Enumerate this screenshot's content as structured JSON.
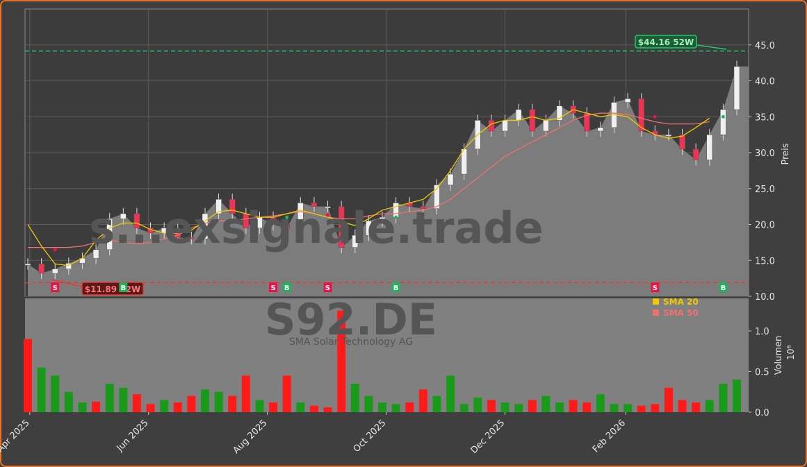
{
  "chart_data": [
    {
      "type": "candlestick",
      "title": "",
      "xlabel": "",
      "ylabel": "Preis",
      "ylim": [
        10,
        50
      ],
      "yticks": [
        10.0,
        15.0,
        20.0,
        25.0,
        30.0,
        35.0,
        40.0,
        45.0
      ],
      "xticks": [
        "Apr 2025",
        "Jun 2025",
        "Aug 2025",
        "Oct 2025",
        "Dec 2025",
        "Feb 2026"
      ],
      "x": [
        "2025-03-31",
        "2025-04-07",
        "2025-04-14",
        "2025-04-21",
        "2025-04-28",
        "2025-05-05",
        "2025-05-12",
        "2025-05-19",
        "2025-05-26",
        "2025-06-02",
        "2025-06-09",
        "2025-06-16",
        "2025-06-23",
        "2025-06-30",
        "2025-07-07",
        "2025-07-14",
        "2025-07-21",
        "2025-07-28",
        "2025-08-04",
        "2025-08-11",
        "2025-08-18",
        "2025-08-25",
        "2025-09-01",
        "2025-09-08",
        "2025-09-15",
        "2025-09-22",
        "2025-09-29",
        "2025-10-06",
        "2025-10-13",
        "2025-10-20",
        "2025-10-27",
        "2025-11-03",
        "2025-11-10",
        "2025-11-17",
        "2025-11-24",
        "2025-12-01",
        "2025-12-08",
        "2025-12-15",
        "2025-12-22",
        "2025-12-29",
        "2026-01-05",
        "2026-01-12",
        "2026-01-19",
        "2026-01-26",
        "2026-02-02",
        "2026-02-09",
        "2026-02-16",
        "2026-02-23",
        "2026-03-02",
        "2026-03-09",
        "2026-03-16",
        "2026-03-23",
        "2026-03-30"
      ],
      "close": [
        14.5,
        13.2,
        13.8,
        14.6,
        15.3,
        16.5,
        20.8,
        21.5,
        19.5,
        18.8,
        19.5,
        18.2,
        18.0,
        21.5,
        23.5,
        21.5,
        19.5,
        21.0,
        20.0,
        19.5,
        23.0,
        22.5,
        22.5,
        16.8,
        18.5,
        20.5,
        21.0,
        23.0,
        22.5,
        22.2,
        25.5,
        27.0,
        30.5,
        34.5,
        33.0,
        34.5,
        36.0,
        33.0,
        34.5,
        36.5,
        35.5,
        33.0,
        33.5,
        37.0,
        37.5,
        33.0,
        32.5,
        32.5,
        30.5,
        29.0,
        32.5,
        36.0,
        42.0
      ],
      "sma20": [
        20.0,
        17.0,
        14.5,
        14.3,
        15.3,
        17.8,
        19.5,
        20.2,
        20.2,
        19.3,
        18.8,
        18.8,
        19.2,
        20.5,
        21.8,
        22.0,
        21.5,
        21.0,
        21.0,
        21.5,
        22.0,
        21.5,
        21.0,
        20.5,
        19.8,
        20.8,
        22.0,
        22.5,
        23.0,
        23.5,
        25.0,
        27.5,
        30.5,
        32.5,
        34.0,
        34.5,
        34.5,
        35.0,
        34.5,
        34.8,
        36.0,
        35.5,
        35.0,
        35.3,
        35.0,
        33.5,
        32.5,
        32.0,
        32.3,
        33.5,
        34.8,
        null,
        null
      ],
      "sma50": [
        16.8,
        16.8,
        16.8,
        16.8,
        17.0,
        17.5,
        17.8,
        17.5,
        17.3,
        17.5,
        18.0,
        18.5,
        19.5,
        20.2,
        20.5,
        20.5,
        20.8,
        21.0,
        21.2,
        21.5,
        21.8,
        21.5,
        21.0,
        20.8,
        20.8,
        21.2,
        21.5,
        21.5,
        21.8,
        22.0,
        22.5,
        23.5,
        25.0,
        26.5,
        28.0,
        29.5,
        30.5,
        31.5,
        32.5,
        33.5,
        34.5,
        35.2,
        35.5,
        35.5,
        35.3,
        34.8,
        34.3,
        34.0,
        34.0,
        34.0,
        34.3,
        null,
        null
      ],
      "volume_label": "Volumen",
      "volume_unit": "10⁶",
      "volume_ylim": [
        0,
        1.4
      ],
      "volume_yticks": [
        0.0,
        0.5,
        1.0
      ],
      "volume": [
        0.9,
        0.55,
        0.45,
        0.25,
        0.12,
        0.13,
        0.35,
        0.3,
        0.22,
        0.1,
        0.15,
        0.12,
        0.2,
        0.28,
        0.25,
        0.2,
        0.45,
        0.15,
        0.12,
        0.45,
        0.12,
        0.08,
        0.06,
        1.25,
        0.35,
        0.2,
        0.12,
        0.1,
        0.12,
        0.28,
        0.2,
        0.45,
        0.1,
        0.18,
        0.15,
        0.12,
        0.1,
        0.15,
        0.2,
        0.12,
        0.15,
        0.12,
        0.22,
        0.1,
        0.1,
        0.08,
        0.1,
        0.3,
        0.15,
        0.12,
        0.15,
        0.35,
        0.4
      ],
      "volume_up": [
        false,
        true,
        true,
        true,
        true,
        false,
        true,
        true,
        false,
        false,
        true,
        false,
        false,
        true,
        true,
        false,
        false,
        true,
        false,
        false,
        true,
        false,
        false,
        false,
        true,
        true,
        true,
        true,
        false,
        false,
        true,
        true,
        true,
        true,
        false,
        true,
        true,
        false,
        true,
        true,
        false,
        false,
        true,
        true,
        true,
        false,
        false,
        false,
        false,
        false,
        true,
        true,
        true
      ],
      "high52": "$44.16 52W",
      "low52": "$11.89 52W",
      "high52_value": 44.16,
      "low52_value": 11.89,
      "signals": [
        {
          "label": "S",
          "color": "#ee1144",
          "x": "2025-04-14",
          "y": 16.5
        },
        {
          "label": "B",
          "color": "#1bb55c",
          "x": "2025-05-19",
          "y": 17.8
        },
        {
          "label": "S",
          "color": "#ee1144",
          "x": "2025-08-04",
          "y": 20.5
        },
        {
          "label": "B",
          "color": "#1bb55c",
          "x": "2025-08-11",
          "y": 21.0
        },
        {
          "label": "S",
          "color": "#ee1144",
          "x": "2025-09-01",
          "y": 21.3
        },
        {
          "label": "B",
          "color": "#1bb55c",
          "x": "2025-10-06",
          "y": 21.0
        },
        {
          "label": "S",
          "color": "#ee1144",
          "x": "2026-02-16",
          "y": 35.0
        },
        {
          "label": "B",
          "color": "#1bb55c",
          "x": "2026-03-23",
          "y": 35.0
        }
      ],
      "legend": [
        {
          "name": "SMA 20",
          "color": "#f2c800"
        },
        {
          "name": "SMA 50",
          "color": "#f07070"
        }
      ],
      "legend_position": "lower-right",
      "watermark": "s...exsignale.trade",
      "ticker": "S92.DE",
      "company": "SMA Solar Technology AG",
      "colors": {
        "up": "#1a9a1a",
        "down": "#ff1a1a",
        "price_area": "#7f7f7f",
        "high_line": "#28c76f",
        "low_line": "#e53935",
        "grid": "#5c5c5c"
      },
      "grid": true
    }
  ]
}
